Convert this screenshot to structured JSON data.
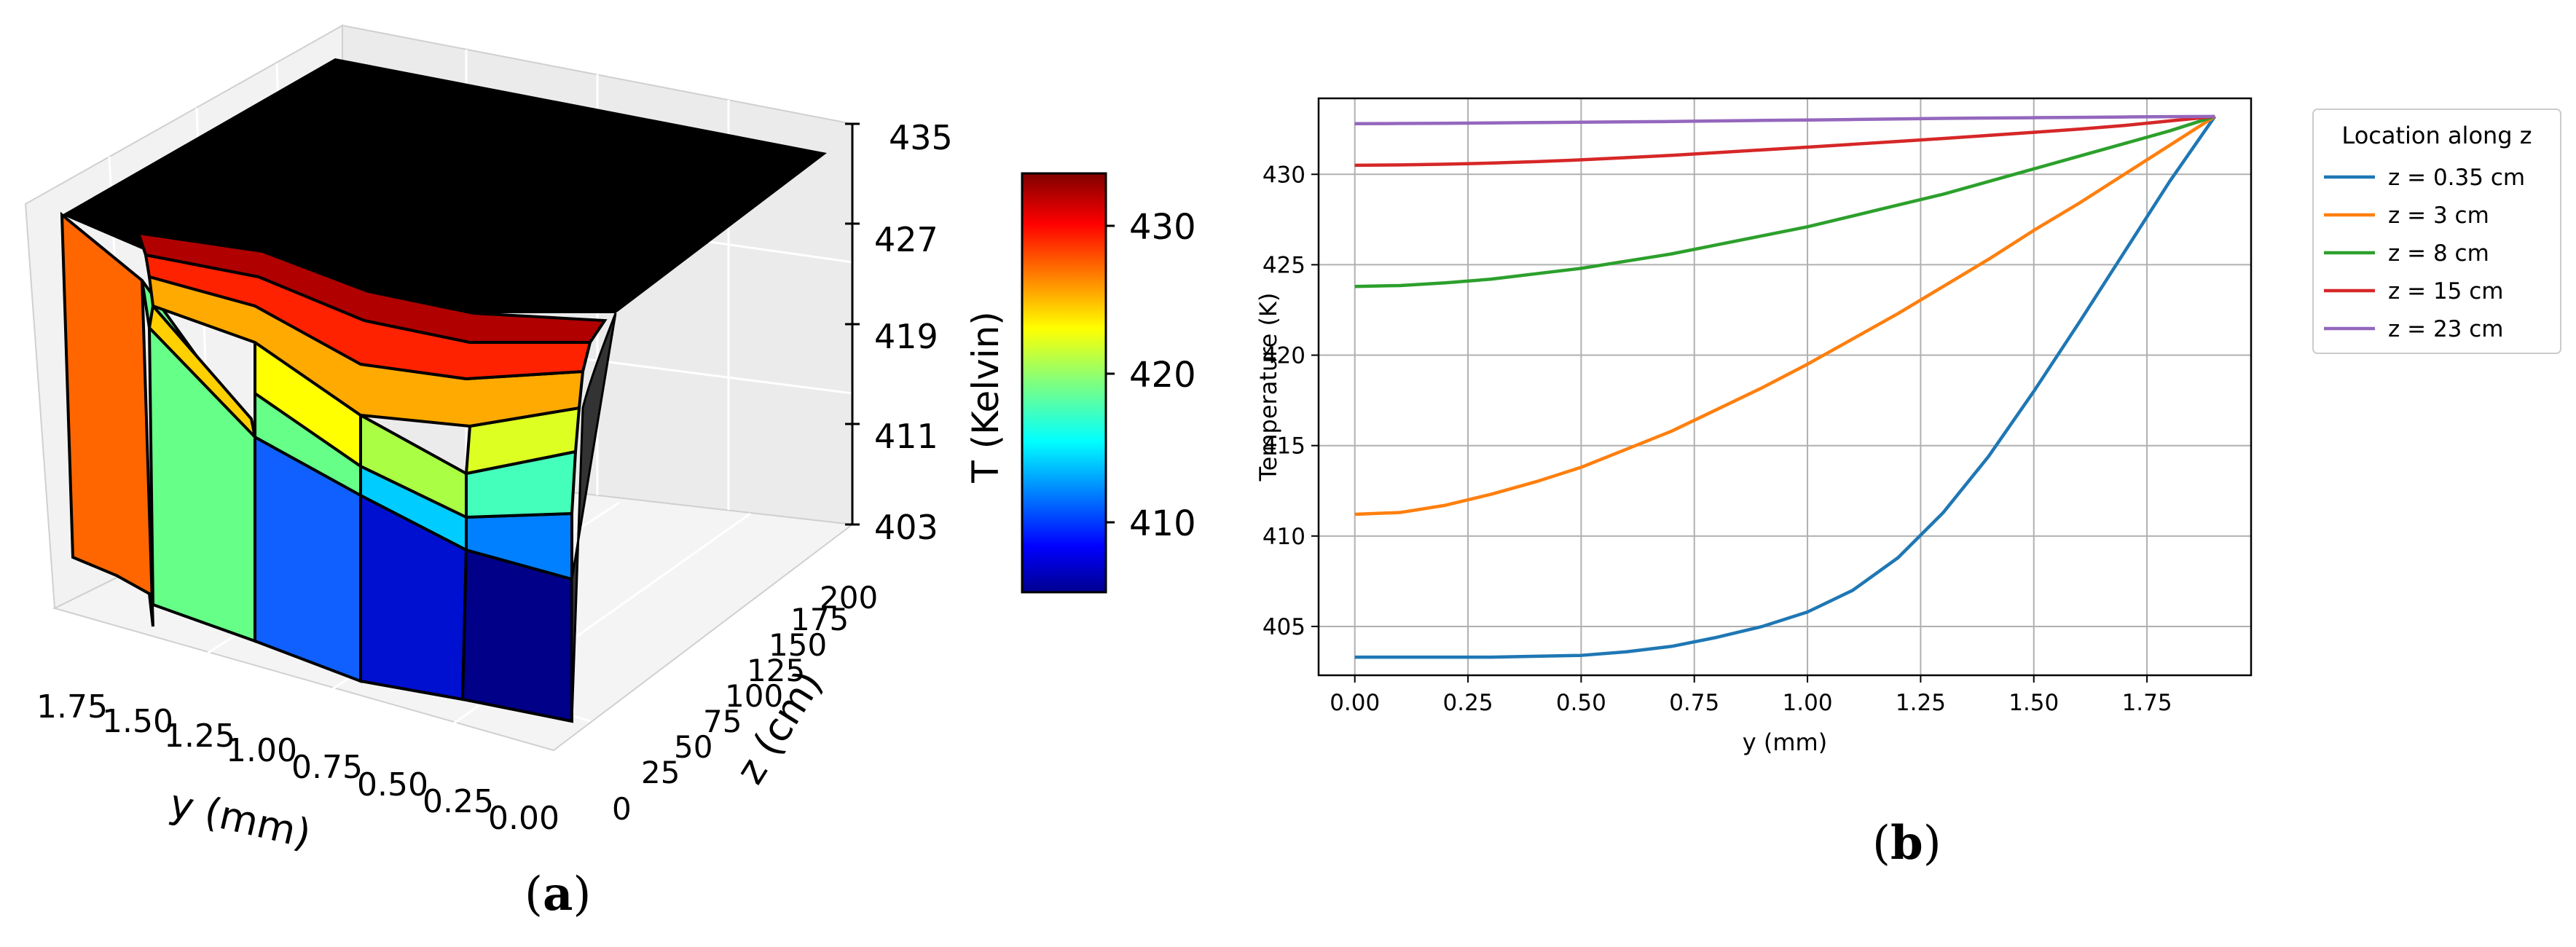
{
  "panels": {
    "a_label": "a",
    "b_label": "b",
    "paren_open": "(",
    "paren_close": ")"
  },
  "chart_data": [
    {
      "type": "surface3d",
      "xlabel": "y (mm)",
      "ylabel": "z (cm)",
      "zlabel": "T (Kelvin)",
      "y_ticks": [
        "1.75",
        "1.50",
        "1.25",
        "1.00",
        "0.75",
        "0.50",
        "0.25",
        "0.00"
      ],
      "z_ticks": [
        "0",
        "25",
        "50",
        "75",
        "100",
        "125",
        "150",
        "175",
        "200"
      ],
      "t_ticks": [
        "435",
        "427",
        "419",
        "411",
        "403"
      ],
      "colorbar": {
        "label": "T (Kelvin)",
        "ticks": [
          "430",
          "420",
          "410"
        ],
        "range": [
          406,
          433
        ],
        "colormap": "jet"
      }
    },
    {
      "type": "line",
      "xlabel": "y (mm)",
      "ylabel": "Temperature (K)",
      "xlim": [
        -0.08,
        1.98
      ],
      "ylim": [
        402.3,
        434.2
      ],
      "x_ticks": [
        "0.00",
        "0.25",
        "0.50",
        "0.75",
        "1.00",
        "1.25",
        "1.50",
        "1.75"
      ],
      "y_ticks": [
        "405",
        "410",
        "415",
        "420",
        "425",
        "430"
      ],
      "grid": true,
      "legend": {
        "title": "Location along z",
        "placement": "outside-top-right"
      },
      "x": [
        0.0,
        0.1,
        0.2,
        0.3,
        0.4,
        0.5,
        0.6,
        0.7,
        0.8,
        0.9,
        1.0,
        1.1,
        1.2,
        1.3,
        1.4,
        1.5,
        1.6,
        1.7,
        1.8,
        1.9
      ],
      "series": [
        {
          "name": "z = 0.35 cm",
          "color": "#1f77b4",
          "values": [
            403.3,
            403.3,
            403.3,
            403.3,
            403.35,
            403.4,
            403.6,
            403.9,
            404.4,
            405.0,
            405.8,
            407.0,
            408.8,
            411.3,
            414.4,
            418.0,
            421.8,
            425.7,
            429.6,
            433.2
          ]
        },
        {
          "name": "z = 3 cm",
          "color": "#ff7f0e",
          "values": [
            411.2,
            411.3,
            411.7,
            412.3,
            413.0,
            413.8,
            414.8,
            415.8,
            417.0,
            418.2,
            419.5,
            420.9,
            422.3,
            423.8,
            425.3,
            426.9,
            428.4,
            430.0,
            431.6,
            433.2
          ]
        },
        {
          "name": "z = 8 cm",
          "color": "#2ca02c",
          "values": [
            423.8,
            423.85,
            424.0,
            424.2,
            424.5,
            424.8,
            425.2,
            425.6,
            426.1,
            426.6,
            427.1,
            427.7,
            428.3,
            428.9,
            429.6,
            430.3,
            431.0,
            431.7,
            432.4,
            433.2
          ]
        },
        {
          "name": "z = 15 cm",
          "color": "#d62728",
          "values": [
            430.5,
            430.52,
            430.56,
            430.62,
            430.7,
            430.8,
            430.92,
            431.05,
            431.2,
            431.35,
            431.5,
            431.66,
            431.82,
            431.98,
            432.15,
            432.32,
            432.5,
            432.7,
            432.95,
            433.2
          ]
        },
        {
          "name": "z = 23 cm",
          "color": "#9467bd",
          "values": [
            432.8,
            432.81,
            432.82,
            432.84,
            432.86,
            432.88,
            432.9,
            432.92,
            432.95,
            432.98,
            433.0,
            433.03,
            433.06,
            433.09,
            433.11,
            433.13,
            433.15,
            433.17,
            433.19,
            433.2
          ]
        }
      ]
    }
  ]
}
